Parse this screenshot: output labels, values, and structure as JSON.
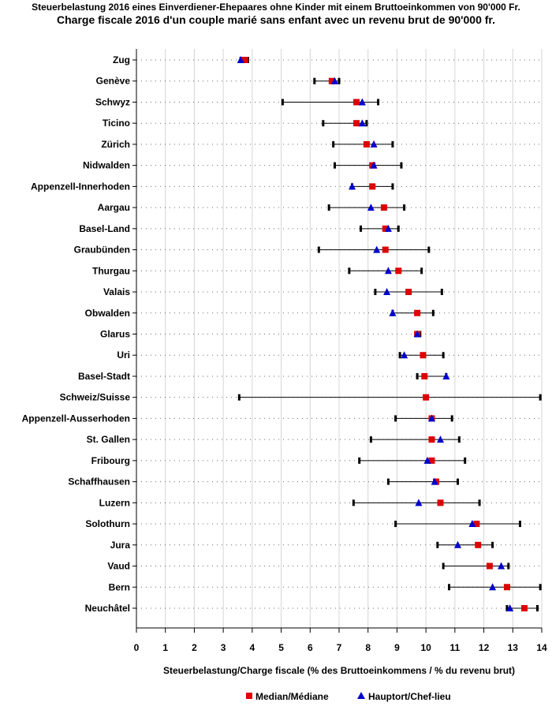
{
  "header": {
    "title_de": "Steuerbelastung 2016 eines Einverdiener-Ehepaares ohne Kinder mit einem Bruttoeinkommen von 90'000 Fr.",
    "title_fr": "Charge fiscale 2016 d'un couple marié sans enfant avec un revenu brut de 90'000 fr."
  },
  "chart_data": {
    "type": "dot-range",
    "title": "Steuerbelastung 2016 eines Einverdiener-Ehepaares ohne Kinder mit einem Bruttoeinkommen von 90'000 Fr. / Charge fiscale 2016 d'un couple marié sans enfant avec un revenu brut de 90'000 fr.",
    "xlabel": "Steuerbelastung/Charge fiscale (% des Bruttoeinkommens / % du revenu brut)",
    "ylabel": "",
    "xlim": [
      0,
      14
    ],
    "xticks": [
      "0",
      "1",
      "2",
      "3",
      "4",
      "5",
      "6",
      "7",
      "8",
      "9",
      "10",
      "11",
      "12",
      "13",
      "14"
    ],
    "grid": "vertical",
    "legend": {
      "position": "bottom-center",
      "median_label": "Median/Médiane",
      "capital_label": "Hauptort/Chef-lieu"
    },
    "colors": {
      "median": "#dd0000",
      "capital": "#0000cc",
      "range": "#000000",
      "grid": "#d4d4d4"
    },
    "categories": [
      "Zug",
      "Genève",
      "Schwyz",
      "Ticino",
      "Zürich",
      "Nidwalden",
      "Appenzell-Innerhoden",
      "Aargau",
      "Basel-Land",
      "Graubünden",
      "Thurgau",
      "Valais",
      "Obwalden",
      "Glarus",
      "Uri",
      "Basel-Stadt",
      "Schweiz/Suisse",
      "Appenzell-Ausserhoden",
      "St. Gallen",
      "Fribourg",
      "Schaffhausen",
      "Luzern",
      "Solothurn",
      "Jura",
      "Vaud",
      "Bern",
      "Neuchâtel"
    ],
    "series": [
      {
        "name": "Min",
        "values": [
          3.6,
          6.15,
          5.05,
          6.45,
          6.8,
          6.85,
          7.45,
          6.65,
          7.75,
          6.3,
          7.35,
          8.25,
          8.85,
          9.65,
          9.1,
          9.7,
          3.55,
          8.95,
          8.1,
          7.7,
          8.7,
          7.5,
          8.95,
          10.4,
          10.6,
          10.8,
          12.8
        ]
      },
      {
        "name": "Max",
        "values": [
          3.85,
          7.0,
          8.35,
          7.95,
          8.85,
          9.15,
          8.85,
          9.25,
          9.05,
          10.1,
          9.85,
          10.55,
          10.25,
          9.8,
          10.6,
          10.7,
          13.95,
          10.9,
          11.15,
          11.35,
          11.1,
          11.85,
          13.25,
          12.3,
          12.85,
          13.95,
          13.85
        ]
      },
      {
        "name": "Median/Médiane",
        "values": [
          3.75,
          6.75,
          7.6,
          7.6,
          7.95,
          8.15,
          8.15,
          8.55,
          8.6,
          8.6,
          9.05,
          9.4,
          9.7,
          9.7,
          9.9,
          9.95,
          10.0,
          10.2,
          10.2,
          10.2,
          10.35,
          10.5,
          11.75,
          11.8,
          12.2,
          12.8,
          13.4
        ]
      },
      {
        "name": "Hauptort/Chef-lieu",
        "values": [
          3.6,
          6.85,
          7.8,
          7.8,
          8.2,
          8.2,
          7.45,
          8.1,
          8.7,
          8.3,
          8.7,
          8.65,
          8.85,
          9.7,
          9.25,
          10.7,
          null,
          10.2,
          10.5,
          10.05,
          10.3,
          9.75,
          11.6,
          11.1,
          12.6,
          12.3,
          12.9
        ]
      }
    ]
  }
}
